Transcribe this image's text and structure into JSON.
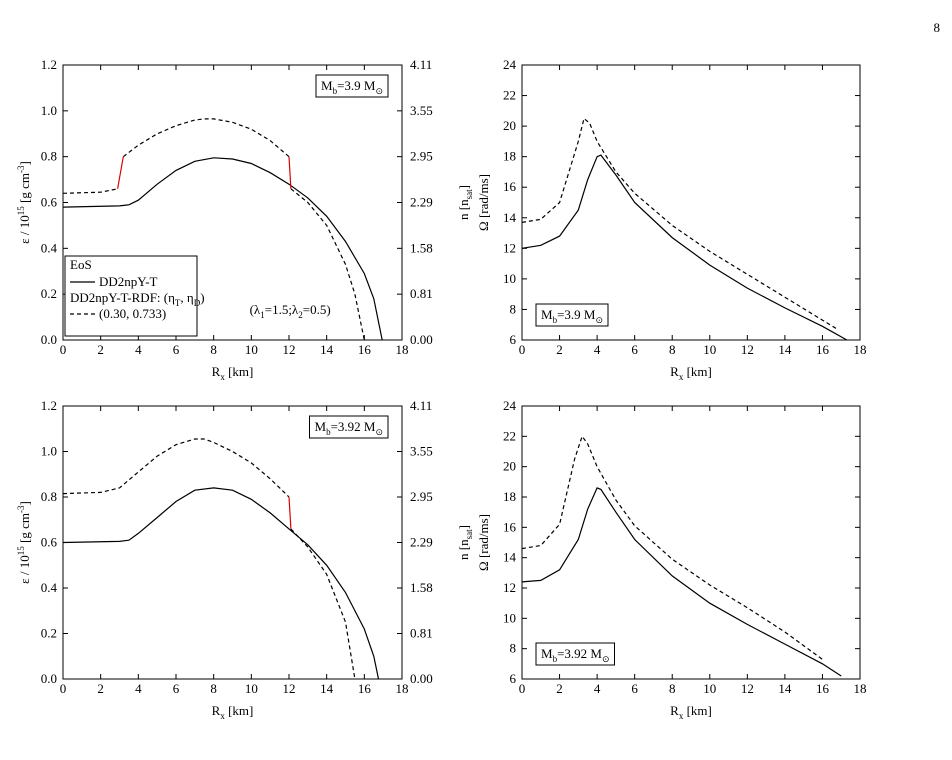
{
  "page_number": "8",
  "chart_data": [
    {
      "type": "line",
      "xlabel": {
        "parts": [
          "R",
          "x",
          " [km]"
        ],
        "script": "sub"
      },
      "ylabel": {
        "parts": [
          "ε / 10",
          "15",
          " [g cm",
          "-3",
          "]"
        ],
        "script": "super"
      },
      "y2label": {
        "parts": [
          "n [n",
          "sat",
          "]"
        ],
        "script": "sub"
      },
      "xlim": [
        0,
        18
      ],
      "xticks": [
        0,
        2,
        4,
        6,
        8,
        10,
        12,
        14,
        16,
        18
      ],
      "ylim": [
        0,
        1.2
      ],
      "yticks": [
        {
          "value": 0,
          "label": "0.0"
        },
        {
          "value": 0.2,
          "label": "0.2"
        },
        {
          "value": 0.4,
          "label": "0.4"
        },
        {
          "value": 0.6,
          "label": "0.6"
        },
        {
          "value": 0.8,
          "label": "0.8"
        },
        {
          "value": 1.0,
          "label": "1.0"
        },
        {
          "value": 1.2,
          "label": "1.2"
        }
      ],
      "y2ticks": [
        {
          "value": 0,
          "label": "0.00"
        },
        0.81,
        1.58,
        2.29,
        2.95,
        3.55,
        4.11
      ],
      "annotation": {
        "parts": [
          "M",
          "b",
          "=3.9 M",
          "⊙"
        ],
        "script": "sub",
        "corner": "top-right"
      },
      "note": {
        "parts": [
          "(λ",
          "1",
          "=1.5;λ",
          "2",
          "=0.5)"
        ],
        "script": "sub"
      },
      "legend": {
        "title": "EoS",
        "subtitle": {
          "parts": [
            "DD2npY-T-RDF: (η",
            "T",
            ", η",
            "D",
            ")"
          ],
          "script": "sub"
        },
        "corner": "bottom-left"
      },
      "series": [
        {
          "name": "DD2npY-T",
          "color": "#000000",
          "dash": "solid",
          "x": [
            0,
            3,
            3.5,
            4,
            5,
            6,
            7,
            8,
            9,
            10,
            11,
            12,
            13,
            14,
            15,
            16,
            16.5,
            16.95
          ],
          "values": [
            0.58,
            0.585,
            0.59,
            0.61,
            0.68,
            0.74,
            0.78,
            0.795,
            0.79,
            0.77,
            0.73,
            0.68,
            0.62,
            0.54,
            0.43,
            0.29,
            0.18,
            0.0
          ]
        },
        {
          "name": "(0.30, 0.733)",
          "color": "#000000",
          "dash": "dashed",
          "x": [
            0,
            2,
            2.9,
            3.05,
            3.2,
            4,
            5,
            6,
            7,
            7.5,
            8,
            9,
            10,
            11,
            12,
            12.05,
            12.1,
            13,
            14,
            15,
            15.5,
            16
          ],
          "values": [
            0.64,
            0.645,
            0.66,
            null,
            0.8,
            0.85,
            0.9,
            0.935,
            0.96,
            0.965,
            0.965,
            0.95,
            0.92,
            0.87,
            0.8,
            null,
            0.66,
            0.6,
            0.5,
            0.33,
            0.2,
            0.0
          ]
        },
        {
          "color": "#e00000",
          "dash": "solid",
          "x": [
            2.9,
            3.2,
            7,
            12,
            12.1
          ],
          "values": [
            0.66,
            0.8,
            null,
            0.8,
            0.66
          ]
        }
      ]
    },
    {
      "type": "line",
      "xlabel": {
        "parts": [
          "R",
          "x",
          " [km]"
        ],
        "script": "sub"
      },
      "ylabel": {
        "parts": [
          "Ω [rad/ms]"
        ],
        "script": "sub"
      },
      "xlim": [
        0,
        18
      ],
      "xticks": [
        0,
        2,
        4,
        6,
        8,
        10,
        12,
        14,
        16,
        18
      ],
      "ylim": [
        6,
        24
      ],
      "yticks": [
        6,
        8,
        10,
        12,
        14,
        16,
        18,
        20,
        22,
        24
      ],
      "annotation": {
        "parts": [
          "M",
          "b",
          "=3.9 M",
          "⊙"
        ],
        "script": "sub",
        "corner": "bottom-left"
      },
      "series": [
        {
          "color": "#000000",
          "dash": "solid",
          "x": [
            0,
            1,
            2,
            3,
            3.5,
            4,
            4.2,
            5,
            6,
            8,
            10,
            12,
            14,
            16,
            17.3
          ],
          "values": [
            12.0,
            12.2,
            12.8,
            14.5,
            16.5,
            18.0,
            18.1,
            16.8,
            15.0,
            12.7,
            10.9,
            9.4,
            8.1,
            6.9,
            6.0
          ]
        },
        {
          "color": "#000000",
          "dash": "dashed",
          "x": [
            0,
            1,
            2,
            3,
            3.3,
            3.6,
            4,
            5,
            6,
            8,
            10,
            12,
            14,
            16,
            16.8
          ],
          "values": [
            13.7,
            13.9,
            15.0,
            19.0,
            20.5,
            20.2,
            19.0,
            17.0,
            15.6,
            13.5,
            11.8,
            10.3,
            8.8,
            7.3,
            6.7
          ]
        }
      ]
    },
    {
      "type": "line",
      "xlabel": {
        "parts": [
          "R",
          "x",
          " [km]"
        ],
        "script": "sub"
      },
      "ylabel": {
        "parts": [
          "ε / 10",
          "15",
          " [g cm",
          "-3",
          "]"
        ],
        "script": "super"
      },
      "y2label": {
        "parts": [
          "n [n",
          "sat",
          "]"
        ],
        "script": "sub"
      },
      "xlim": [
        0,
        18
      ],
      "xticks": [
        0,
        2,
        4,
        6,
        8,
        10,
        12,
        14,
        16,
        18
      ],
      "ylim": [
        0,
        1.2
      ],
      "yticks": [
        {
          "value": 0,
          "label": "0.0"
        },
        {
          "value": 0.2,
          "label": "0.2"
        },
        {
          "value": 0.4,
          "label": "0.4"
        },
        {
          "value": 0.6,
          "label": "0.6"
        },
        {
          "value": 0.8,
          "label": "0.8"
        },
        {
          "value": 1.0,
          "label": "1.0"
        },
        {
          "value": 1.2,
          "label": "1.2"
        }
      ],
      "y2ticks": [
        {
          "value": 0,
          "label": "0.00"
        },
        0.81,
        1.58,
        2.29,
        2.95,
        3.55,
        4.11
      ],
      "annotation": {
        "parts": [
          "M",
          "b",
          "=3.92 M",
          "⊙"
        ],
        "script": "sub",
        "corner": "top-right"
      },
      "series": [
        {
          "color": "#000000",
          "dash": "solid",
          "x": [
            0,
            3,
            3.5,
            4,
            5,
            6,
            7,
            8,
            9,
            10,
            11,
            12,
            13,
            14,
            15,
            16,
            16.5,
            16.75
          ],
          "values": [
            0.6,
            0.605,
            0.61,
            0.64,
            0.71,
            0.78,
            0.83,
            0.84,
            0.83,
            0.79,
            0.73,
            0.66,
            0.59,
            0.5,
            0.38,
            0.22,
            0.1,
            0.0
          ]
        },
        {
          "color": "#000000",
          "dash": "dashed",
          "x": [
            0,
            2,
            3,
            4,
            5,
            6,
            7,
            7.5,
            8,
            9,
            10,
            11,
            12,
            12.05,
            12.1,
            13,
            14,
            15,
            15.5
          ],
          "values": [
            0.815,
            0.82,
            0.84,
            0.91,
            0.98,
            1.03,
            1.055,
            1.055,
            1.04,
            1.0,
            0.95,
            0.88,
            0.8,
            null,
            0.66,
            0.58,
            0.46,
            0.25,
            0.0
          ]
        },
        {
          "color": "#e00000",
          "dash": "solid",
          "x": [
            12,
            12.1
          ],
          "values": [
            0.8,
            0.66
          ]
        }
      ]
    },
    {
      "type": "line",
      "xlabel": {
        "parts": [
          "R",
          "x",
          " [km]"
        ],
        "script": "sub"
      },
      "ylabel": {
        "parts": [
          "Ω [rad/ms]"
        ],
        "script": "sub"
      },
      "xlim": [
        0,
        18
      ],
      "xticks": [
        0,
        2,
        4,
        6,
        8,
        10,
        12,
        14,
        16,
        18
      ],
      "ylim": [
        6,
        24
      ],
      "yticks": [
        6,
        8,
        10,
        12,
        14,
        16,
        18,
        20,
        22,
        24
      ],
      "annotation": {
        "parts": [
          "M",
          "b",
          "=3.92 M",
          "⊙"
        ],
        "script": "sub",
        "corner": "bottom-left"
      },
      "series": [
        {
          "color": "#000000",
          "dash": "solid",
          "x": [
            0,
            1,
            2,
            3,
            3.5,
            4,
            4.2,
            5,
            6,
            8,
            10,
            12,
            14,
            16,
            17
          ],
          "values": [
            12.4,
            12.5,
            13.2,
            15.2,
            17.2,
            18.6,
            18.5,
            17.0,
            15.2,
            12.8,
            11.0,
            9.6,
            8.3,
            7.0,
            6.2
          ]
        },
        {
          "color": "#000000",
          "dash": "dashed",
          "x": [
            0,
            1,
            2,
            2.8,
            3.2,
            3.5,
            4,
            5,
            6,
            8,
            10,
            12,
            14,
            16
          ],
          "values": [
            14.6,
            14.8,
            16.2,
            20.5,
            22.0,
            21.5,
            20.0,
            17.8,
            16.1,
            13.9,
            12.2,
            10.7,
            9.1,
            7.3
          ]
        }
      ]
    }
  ]
}
